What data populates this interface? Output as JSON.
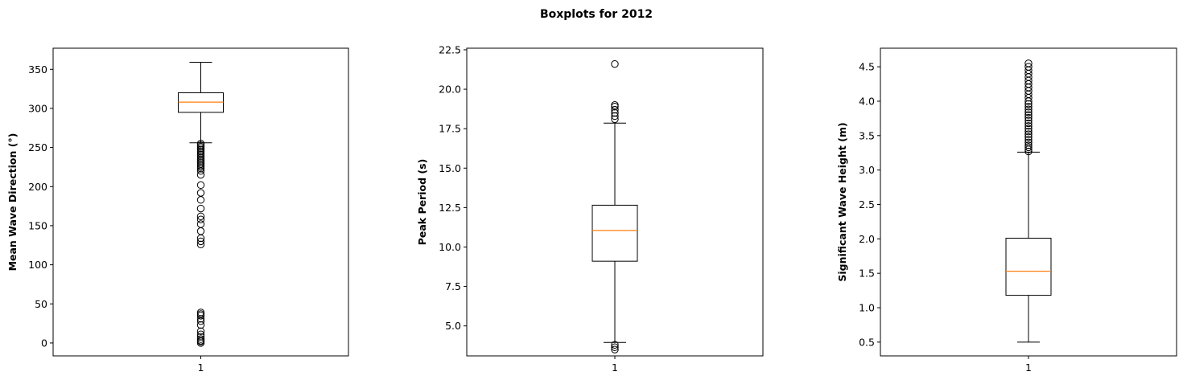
{
  "figure": {
    "title": "Boxplots for 2012"
  },
  "chart_data": [
    {
      "type": "boxplot",
      "ylabel": "Mean Wave Direction (°)",
      "xlabel": "",
      "categories": [
        "1"
      ],
      "ylim": [
        -16.5,
        377
      ],
      "yticks": [
        0,
        50,
        100,
        150,
        200,
        250,
        300,
        350
      ],
      "ytick_labels": [
        "0",
        "50",
        "100",
        "150",
        "200",
        "250",
        "300",
        "350"
      ],
      "box": {
        "q1": 295,
        "median": 308,
        "q3": 320,
        "whisker_low": 256,
        "whisker_high": 359
      },
      "outliers": [
        0,
        2,
        3,
        5,
        8,
        11,
        15,
        23,
        28,
        31,
        35,
        37,
        39,
        126,
        130,
        134,
        143,
        152,
        158,
        162,
        172,
        183,
        192,
        202,
        215,
        220,
        223,
        225,
        227,
        229,
        231,
        233,
        235,
        237,
        239,
        241,
        243,
        245,
        247,
        249,
        251,
        253,
        255
      ],
      "box_color": "#000000",
      "median_color": "#ff7f0e"
    },
    {
      "type": "boxplot",
      "ylabel": "Peak Period (s)",
      "xlabel": "",
      "categories": [
        "1"
      ],
      "ylim": [
        3.1,
        22.6
      ],
      "yticks": [
        5.0,
        7.5,
        10.0,
        12.5,
        15.0,
        17.5,
        20.0,
        22.5
      ],
      "ytick_labels": [
        "5.0",
        "7.5",
        "10.0",
        "12.5",
        "15.0",
        "17.5",
        "20.0",
        "22.5"
      ],
      "box": {
        "q1": 9.1,
        "median": 11.05,
        "q3": 12.65,
        "whisker_low": 3.95,
        "whisker_high": 17.85
      },
      "outliers": [
        3.5,
        3.65,
        3.8,
        18.1,
        18.3,
        18.5,
        18.7,
        18.9,
        19.0,
        21.6
      ],
      "box_color": "#000000",
      "median_color": "#ff7f0e"
    },
    {
      "type": "boxplot",
      "ylabel": "Significant Wave Height (m)",
      "xlabel": "",
      "categories": [
        "1"
      ],
      "ylim": [
        0.3,
        4.77
      ],
      "yticks": [
        0.5,
        1.0,
        1.5,
        2.0,
        2.5,
        3.0,
        3.5,
        4.0,
        4.5
      ],
      "ytick_labels": [
        "0.5",
        "1.0",
        "1.5",
        "2.0",
        "2.5",
        "3.0",
        "3.5",
        "4.0",
        "4.5"
      ],
      "box": {
        "q1": 1.18,
        "median": 1.53,
        "q3": 2.01,
        "whisker_low": 0.5,
        "whisker_high": 3.26
      },
      "outliers": [
        3.27,
        3.3,
        3.33,
        3.36,
        3.4,
        3.44,
        3.48,
        3.52,
        3.56,
        3.6,
        3.64,
        3.68,
        3.72,
        3.76,
        3.8,
        3.84,
        3.88,
        3.92,
        3.96,
        4.0,
        4.05,
        4.1,
        4.15,
        4.2,
        4.25,
        4.3,
        4.35,
        4.4,
        4.45,
        4.5,
        4.55
      ],
      "box_color": "#000000",
      "median_color": "#ff7f0e"
    }
  ]
}
